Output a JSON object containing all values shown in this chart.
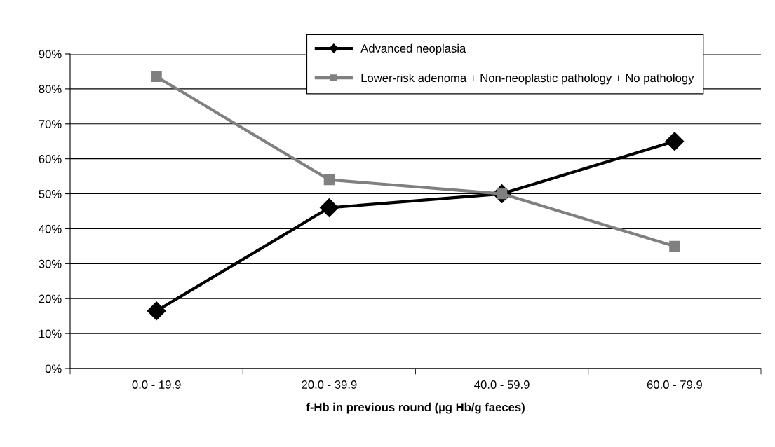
{
  "chart_data": {
    "type": "line",
    "xlabel": "f-Hb in previous round (µg Hb/g faeces)",
    "categories": [
      "0.0 - 19.9",
      "20.0 - 39.9",
      "40.0 - 59.9",
      "60.0 - 79.9"
    ],
    "series": [
      {
        "name": "Advanced neoplasia",
        "color": "#000000",
        "marker": "diamond",
        "values": [
          16.5,
          46,
          50,
          65
        ]
      },
      {
        "name": "Lower-risk adenoma + Non-neoplastic pathology + No pathology",
        "color": "#808080",
        "marker": "square",
        "values": [
          83.5,
          54,
          50,
          35
        ]
      }
    ],
    "ylim": [
      0,
      90
    ],
    "yticks": [
      {
        "value": 0,
        "label": "0%"
      },
      {
        "value": 10,
        "label": "10%"
      },
      {
        "value": 20,
        "label": "20%"
      },
      {
        "value": 30,
        "label": "30%"
      },
      {
        "value": 40,
        "label": "40%"
      },
      {
        "value": 50,
        "label": "50%"
      },
      {
        "value": 60,
        "label": "60%"
      },
      {
        "value": 70,
        "label": "70%"
      },
      {
        "value": 80,
        "label": "80%"
      },
      {
        "value": 90,
        "label": "90%"
      }
    ],
    "grid": "y",
    "legend": "top right",
    "line_style": "solid"
  }
}
